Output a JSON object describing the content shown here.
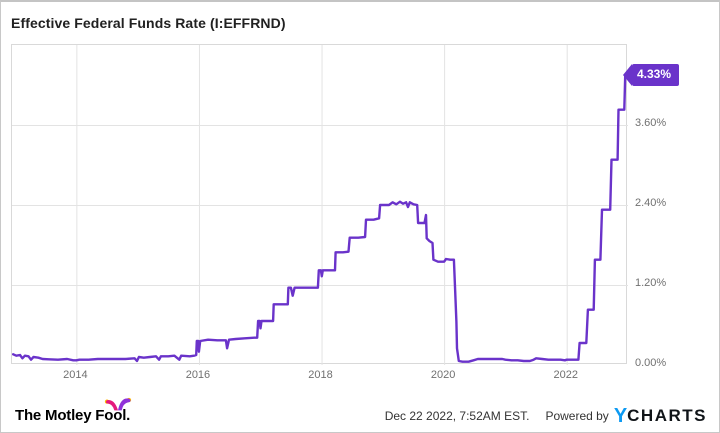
{
  "header": {
    "title": "Effective Federal Funds Rate (I:EFFRND)"
  },
  "chart_data": {
    "type": "line",
    "title": "Effective Federal Funds Rate (I:EFFRND)",
    "xlabel": "",
    "ylabel": "",
    "xlim": [
      2012.95,
      2023.0
    ],
    "ylim": [
      0,
      4.8
    ],
    "grid": true,
    "legend": "none",
    "x_ticks": [
      {
        "value": 2014,
        "label": "2014"
      },
      {
        "value": 2016,
        "label": "2016"
      },
      {
        "value": 2018,
        "label": "2018"
      },
      {
        "value": 2020,
        "label": "2020"
      },
      {
        "value": 2022,
        "label": "2022"
      }
    ],
    "y_ticks": [
      {
        "value": 3.6,
        "label": "3.60%"
      },
      {
        "value": 2.4,
        "label": "2.40%"
      },
      {
        "value": 1.2,
        "label": "1.20%"
      },
      {
        "value": 0.0,
        "label": "0.00%"
      }
    ],
    "last_value_badge": {
      "label": "4.33%",
      "value": 4.33,
      "color": "#6a33ca"
    },
    "series": [
      {
        "name": "Effective Federal Funds Rate",
        "color": "#6a33ca",
        "points": [
          [
            2012.97,
            0.16
          ],
          [
            2013.02,
            0.14
          ],
          [
            2013.08,
            0.15
          ],
          [
            2013.12,
            0.1
          ],
          [
            2013.16,
            0.14
          ],
          [
            2013.22,
            0.13
          ],
          [
            2013.26,
            0.08
          ],
          [
            2013.3,
            0.12
          ],
          [
            2013.38,
            0.11
          ],
          [
            2013.45,
            0.09
          ],
          [
            2013.55,
            0.085
          ],
          [
            2013.7,
            0.08
          ],
          [
            2013.85,
            0.09
          ],
          [
            2013.95,
            0.07
          ],
          [
            2014.0,
            0.07
          ],
          [
            2014.05,
            0.08
          ],
          [
            2014.2,
            0.08
          ],
          [
            2014.35,
            0.09
          ],
          [
            2014.5,
            0.09
          ],
          [
            2014.65,
            0.09
          ],
          [
            2014.8,
            0.09
          ],
          [
            2014.95,
            0.1
          ],
          [
            2014.99,
            0.06
          ],
          [
            2015.02,
            0.12
          ],
          [
            2015.1,
            0.11
          ],
          [
            2015.2,
            0.12
          ],
          [
            2015.3,
            0.13
          ],
          [
            2015.35,
            0.08
          ],
          [
            2015.38,
            0.13
          ],
          [
            2015.5,
            0.13
          ],
          [
            2015.6,
            0.14
          ],
          [
            2015.68,
            0.08
          ],
          [
            2015.71,
            0.14
          ],
          [
            2015.85,
            0.13
          ],
          [
            2015.92,
            0.14
          ],
          [
            2015.955,
            0.15
          ],
          [
            2015.965,
            0.36
          ],
          [
            2015.99,
            0.36
          ],
          [
            2016.0,
            0.2
          ],
          [
            2016.02,
            0.36
          ],
          [
            2016.15,
            0.38
          ],
          [
            2016.3,
            0.37
          ],
          [
            2016.44,
            0.37
          ],
          [
            2016.46,
            0.25
          ],
          [
            2016.49,
            0.38
          ],
          [
            2016.6,
            0.39
          ],
          [
            2016.75,
            0.4
          ],
          [
            2016.9,
            0.41
          ],
          [
            2016.95,
            0.41
          ],
          [
            2016.965,
            0.66
          ],
          [
            2016.99,
            0.66
          ],
          [
            2017.005,
            0.55
          ],
          [
            2017.02,
            0.66
          ],
          [
            2017.15,
            0.66
          ],
          [
            2017.21,
            0.66
          ],
          [
            2017.22,
            0.91
          ],
          [
            2017.4,
            0.91
          ],
          [
            2017.45,
            0.91
          ],
          [
            2017.46,
            1.16
          ],
          [
            2017.5,
            1.16
          ],
          [
            2017.53,
            1.04
          ],
          [
            2017.56,
            1.16
          ],
          [
            2017.7,
            1.16
          ],
          [
            2017.85,
            1.16
          ],
          [
            2017.94,
            1.16
          ],
          [
            2017.955,
            1.42
          ],
          [
            2017.99,
            1.42
          ],
          [
            2018.005,
            1.33
          ],
          [
            2018.02,
            1.42
          ],
          [
            2018.15,
            1.42
          ],
          [
            2018.22,
            1.42
          ],
          [
            2018.23,
            1.69
          ],
          [
            2018.35,
            1.69
          ],
          [
            2018.44,
            1.7
          ],
          [
            2018.46,
            1.91
          ],
          [
            2018.6,
            1.91
          ],
          [
            2018.71,
            1.92
          ],
          [
            2018.725,
            2.18
          ],
          [
            2018.85,
            2.18
          ],
          [
            2018.94,
            2.2
          ],
          [
            2018.955,
            2.4
          ],
          [
            2018.99,
            2.4
          ],
          [
            2019.01,
            2.4
          ],
          [
            2019.1,
            2.4
          ],
          [
            2019.16,
            2.44
          ],
          [
            2019.22,
            2.41
          ],
          [
            2019.28,
            2.45
          ],
          [
            2019.33,
            2.42
          ],
          [
            2019.38,
            2.44
          ],
          [
            2019.41,
            2.37
          ],
          [
            2019.44,
            2.44
          ],
          [
            2019.5,
            2.41
          ],
          [
            2019.56,
            2.4
          ],
          [
            2019.575,
            2.13
          ],
          [
            2019.68,
            2.13
          ],
          [
            2019.705,
            2.25
          ],
          [
            2019.715,
            1.9
          ],
          [
            2019.76,
            1.86
          ],
          [
            2019.81,
            1.83
          ],
          [
            2019.825,
            1.58
          ],
          [
            2019.9,
            1.55
          ],
          [
            2019.97,
            1.55
          ],
          [
            2020.0,
            1.55
          ],
          [
            2020.03,
            1.59
          ],
          [
            2020.1,
            1.58
          ],
          [
            2020.16,
            1.58
          ],
          [
            2020.18,
            1.1
          ],
          [
            2020.2,
            0.65
          ],
          [
            2020.21,
            0.25
          ],
          [
            2020.24,
            0.06
          ],
          [
            2020.3,
            0.05
          ],
          [
            2020.4,
            0.05
          ],
          [
            2020.48,
            0.07
          ],
          [
            2020.55,
            0.09
          ],
          [
            2020.65,
            0.09
          ],
          [
            2020.75,
            0.09
          ],
          [
            2020.85,
            0.09
          ],
          [
            2020.95,
            0.09
          ],
          [
            2021.0,
            0.08
          ],
          [
            2021.1,
            0.07
          ],
          [
            2021.2,
            0.07
          ],
          [
            2021.3,
            0.06
          ],
          [
            2021.4,
            0.06
          ],
          [
            2021.46,
            0.08
          ],
          [
            2021.5,
            0.1
          ],
          [
            2021.6,
            0.09
          ],
          [
            2021.7,
            0.08
          ],
          [
            2021.8,
            0.08
          ],
          [
            2021.9,
            0.08
          ],
          [
            2021.97,
            0.07
          ],
          [
            2022.0,
            0.08
          ],
          [
            2022.1,
            0.08
          ],
          [
            2022.19,
            0.08
          ],
          [
            2022.21,
            0.33
          ],
          [
            2022.32,
            0.33
          ],
          [
            2022.345,
            0.83
          ],
          [
            2022.44,
            0.83
          ],
          [
            2022.46,
            1.58
          ],
          [
            2022.55,
            1.58
          ],
          [
            2022.575,
            2.33
          ],
          [
            2022.71,
            2.33
          ],
          [
            2022.73,
            3.08
          ],
          [
            2022.83,
            3.08
          ],
          [
            2022.845,
            3.83
          ],
          [
            2022.94,
            3.83
          ],
          [
            2022.955,
            4.33
          ],
          [
            2022.98,
            4.33
          ]
        ]
      }
    ]
  },
  "footer": {
    "logo_text": "The Motley Fool.",
    "timestamp": "Dec 22 2022, 7:52AM EST.",
    "powered_by": "Powered by",
    "ycharts_y": "Y",
    "ycharts_rest": "CHARTS"
  },
  "colors": {
    "line": "#6a33ca",
    "badge": "#6a33ca",
    "grid": "#e3e3e3",
    "plot_border": "#d9d9d9",
    "axis_text": "#707070",
    "ycharts_blue": "#0d9af2",
    "tmf_pink": "#e4197d",
    "tmf_purple": "#9031d9",
    "tmf_bell": "#ffb902"
  }
}
